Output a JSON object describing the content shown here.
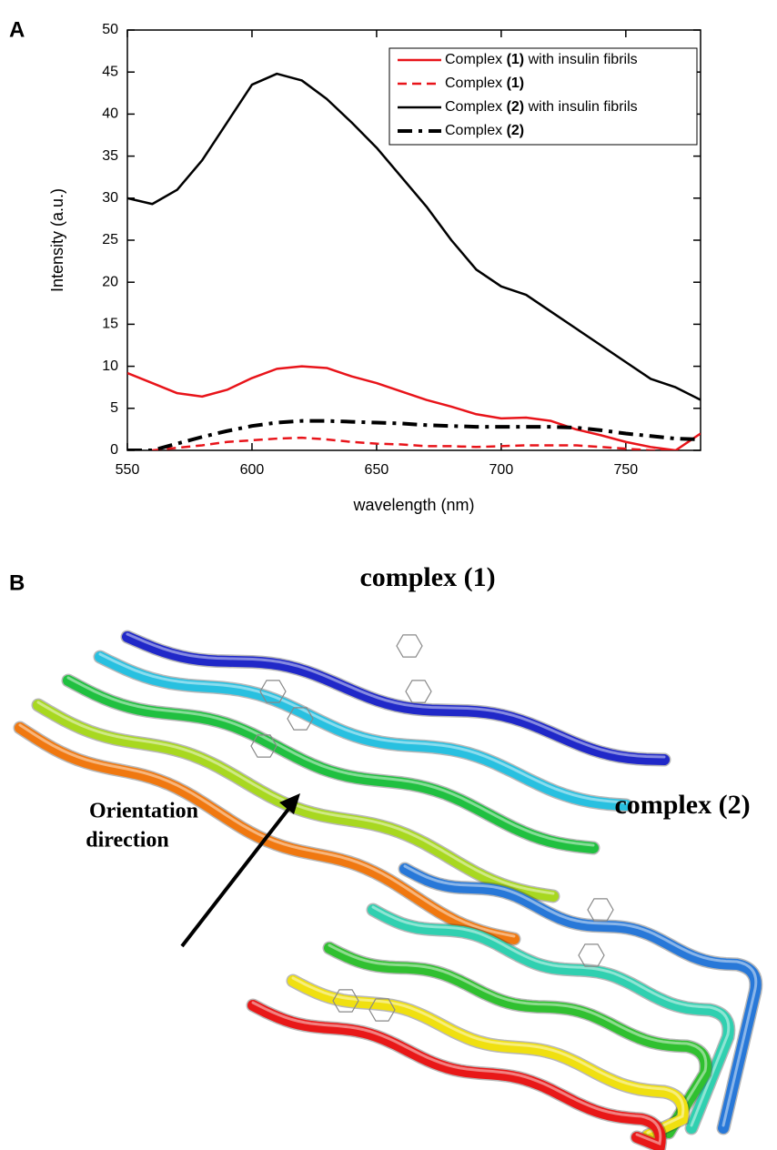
{
  "panel_a_label": "A",
  "chart_data": {
    "type": "line",
    "xlabel": "wavelength (nm)",
    "ylabel": "Intensity (a.u.)",
    "x": [
      550,
      560,
      570,
      580,
      590,
      600,
      610,
      620,
      630,
      640,
      650,
      660,
      670,
      680,
      690,
      700,
      710,
      720,
      730,
      740,
      750,
      760,
      770,
      780
    ],
    "series": [
      {
        "name": "Complex (1) with insulin fibrils",
        "color": "#e8141a",
        "dash": "solid",
        "values": [
          9.2,
          8,
          6.8,
          6.4,
          7.2,
          8.6,
          9.7,
          10,
          9.8,
          8.8,
          8,
          7,
          6,
          5.2,
          4.3,
          3.8,
          3.9,
          3.5,
          2.5,
          1.8,
          1,
          0.4,
          0,
          2
        ]
      },
      {
        "name": "Complex (1)",
        "color": "#e8141a",
        "dash": "dashed",
        "values": [
          null,
          0,
          0.3,
          0.6,
          1,
          1.2,
          1.4,
          1.5,
          1.3,
          1,
          0.8,
          0.7,
          0.5,
          0.5,
          0.4,
          0.5,
          0.6,
          0.6,
          0.6,
          0.4,
          0.2,
          0,
          0,
          null
        ]
      },
      {
        "name": "Complex (2) with insulin fibrils",
        "color": "#000000",
        "dash": "solid",
        "values": [
          30,
          29.3,
          31,
          34.5,
          39,
          43.5,
          44.8,
          44,
          41.8,
          39,
          36,
          32.5,
          29,
          25,
          21.5,
          19.5,
          18.5,
          16.5,
          14.5,
          12.5,
          10.5,
          8.5,
          7.5,
          6
        ]
      },
      {
        "name": "Complex (2)",
        "color": "#000000",
        "dash": "dash-dot",
        "values": [
          0,
          0,
          0.8,
          1.6,
          2.3,
          2.9,
          3.3,
          3.5,
          3.5,
          3.4,
          3.3,
          3.2,
          3,
          2.9,
          2.8,
          2.8,
          2.8,
          2.8,
          2.7,
          2.4,
          2,
          1.7,
          1.4,
          1.3
        ]
      }
    ],
    "xlim": [
      550,
      780
    ],
    "xticks": [
      550,
      600,
      650,
      700,
      750
    ],
    "ylim": [
      0,
      50
    ],
    "yticks": [
      0,
      5,
      10,
      15,
      20,
      25,
      30,
      35,
      40,
      45,
      50
    ],
    "legend": "upper right",
    "grid": false
  },
  "panel_b": {
    "label": "B",
    "complex_1": "complex (1)",
    "complex_2": "complex (2)",
    "orientation": [
      "Orientation",
      "direction"
    ]
  }
}
